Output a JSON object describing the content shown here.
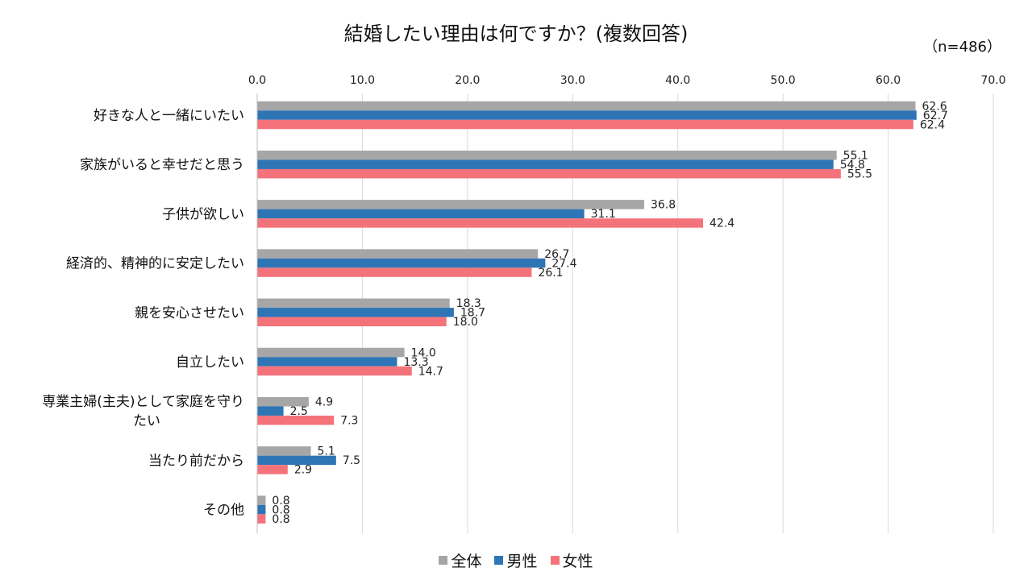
{
  "chart_data": {
    "type": "bar",
    "orientation": "horizontal",
    "title": "結婚したい理由は何ですか？(複数回答)",
    "note": "（n=486）",
    "xlim": [
      0,
      70
    ],
    "xticks": [
      "0.0",
      "10.0",
      "20.0",
      "30.0",
      "40.0",
      "50.0",
      "60.0",
      "70.0"
    ],
    "grid": true,
    "legend_position": "bottom",
    "categories": [
      "好きな人と一緒にいたい",
      "家族がいると幸せだと思う",
      "子供が欲しい",
      "経済的、精神的に安定したい",
      "親を安心させたい",
      "自立したい",
      "専業主婦(主夫)として家庭を守りたい",
      "当たり前だから",
      "その他"
    ],
    "category_lines": [
      [
        "好きな人と一緒にいたい"
      ],
      [
        "家族がいると幸せだと思う"
      ],
      [
        "子供が欲しい"
      ],
      [
        "経済的、精神的に安定したい"
      ],
      [
        "親を安心させたい"
      ],
      [
        "自立したい"
      ],
      [
        "専業主婦(主夫)として家庭を守り",
        "たい"
      ],
      [
        "当たり前だから"
      ],
      [
        "その他"
      ]
    ],
    "series": [
      {
        "name": "全体",
        "color": "#a6a6a6",
        "values": [
          62.6,
          55.1,
          36.8,
          26.7,
          18.3,
          14.0,
          4.9,
          5.1,
          0.8
        ]
      },
      {
        "name": "男性",
        "color": "#2e75b6",
        "values": [
          62.7,
          54.8,
          31.1,
          27.4,
          18.7,
          13.3,
          2.5,
          7.5,
          0.8
        ]
      },
      {
        "name": "女性",
        "color": "#f4737a",
        "values": [
          62.4,
          55.5,
          42.4,
          26.1,
          18.0,
          14.7,
          7.3,
          2.9,
          0.8
        ]
      }
    ]
  }
}
